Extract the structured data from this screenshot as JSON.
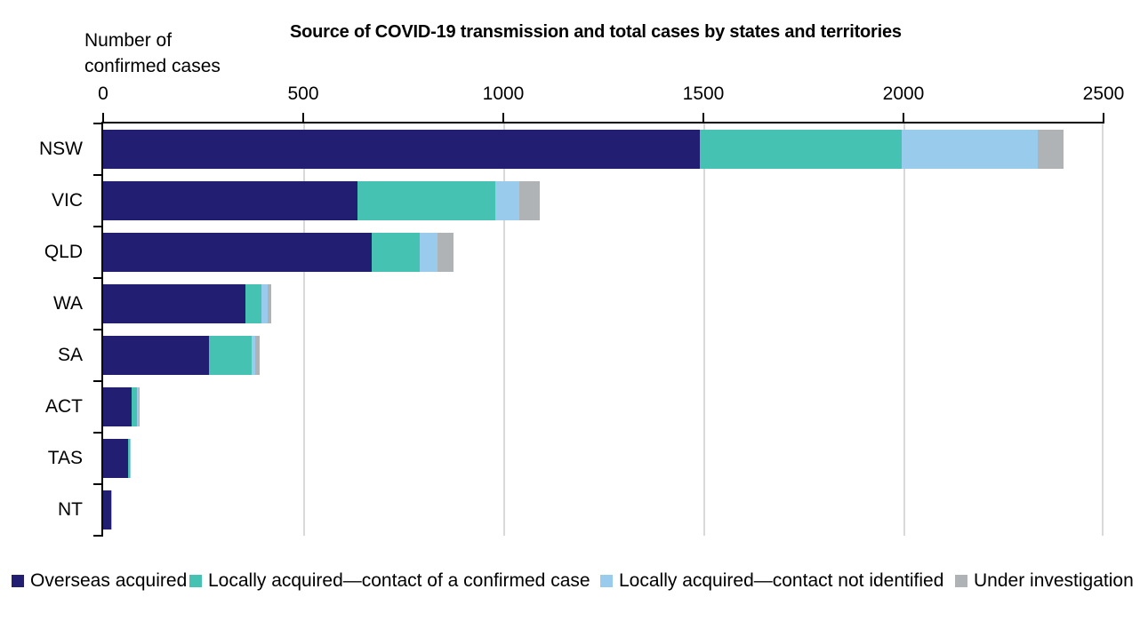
{
  "chart_data": {
    "type": "bar",
    "orientation": "horizontal",
    "stacked": true,
    "title": "Source of COVID-19 transmission and total cases by states and territories",
    "xlabel": "Number of confirmed cases",
    "categories": [
      "NSW",
      "VIC",
      "QLD",
      "WA",
      "SA",
      "ACT",
      "TAS",
      "NT"
    ],
    "series": [
      {
        "name": "Overseas acquired",
        "color": "#221E72",
        "values": [
          1490,
          635,
          670,
          355,
          265,
          71,
          63,
          19
        ]
      },
      {
        "name": "Locally acquired—contact of a confirmed case",
        "color": "#45C2B2",
        "values": [
          505,
          345,
          120,
          40,
          105,
          13,
          4,
          0
        ]
      },
      {
        "name": "Locally acquired—contact not identified",
        "color": "#99CBEC",
        "values": [
          340,
          60,
          45,
          15,
          10,
          4,
          3,
          2
        ]
      },
      {
        "name": "Under investigation",
        "color": "#AFB3B6",
        "values": [
          65,
          50,
          40,
          10,
          10,
          1,
          0,
          0
        ]
      }
    ],
    "xlim": [
      0,
      2500
    ],
    "x_ticks": [
      0,
      500,
      1000,
      1500,
      2000,
      2500
    ],
    "grid": true,
    "gridline_color": "#D9D9D9",
    "axis_color": "#000000",
    "legend_position": "bottom"
  }
}
